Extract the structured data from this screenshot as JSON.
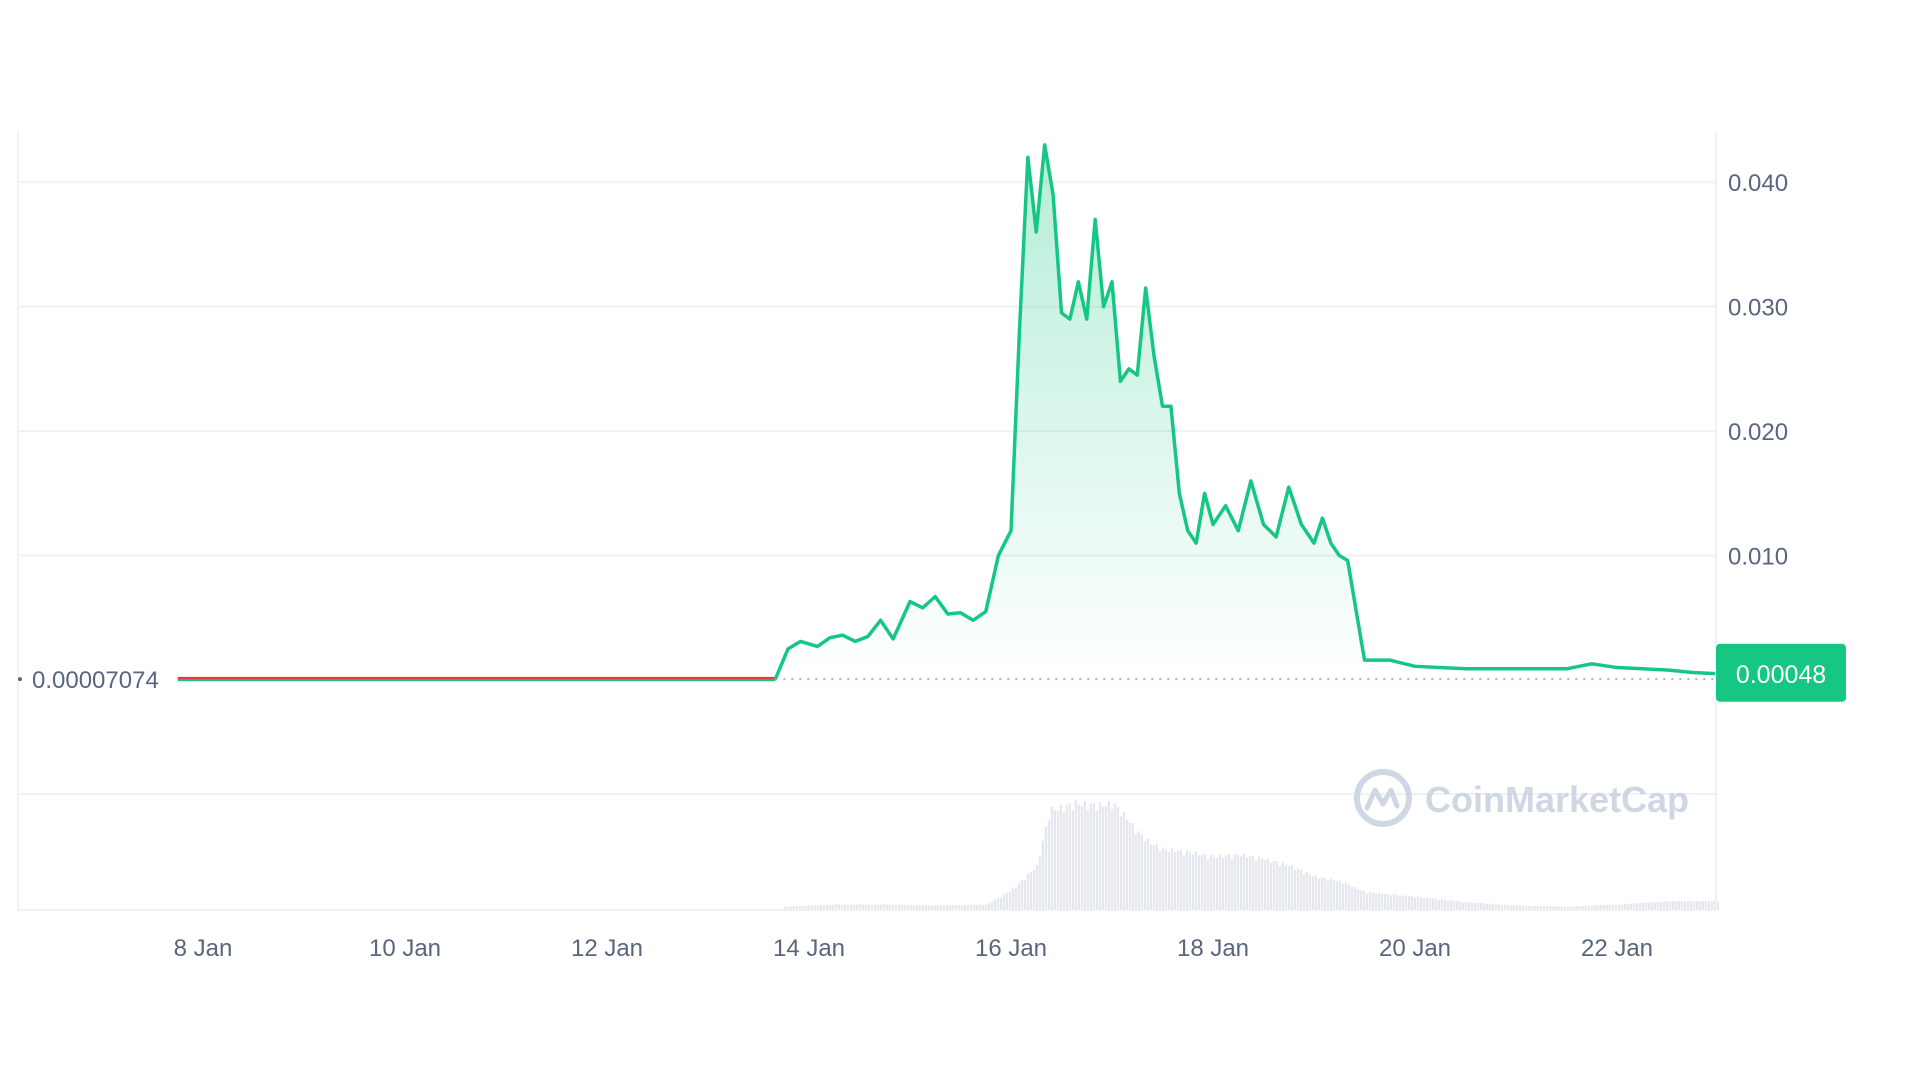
{
  "chart_data": {
    "type": "area",
    "x_ticks": [
      "8 Jan",
      "10 Jan",
      "12 Jan",
      "14 Jan",
      "16 Jan",
      "18 Jan",
      "20 Jan",
      "22 Jan"
    ],
    "y_ticks": [
      "0.040",
      "0.030",
      "0.020",
      "0.010"
    ],
    "ylim": [
      0,
      0.045
    ],
    "open_price_label": "0.00007074",
    "current_price_label": "0.00048",
    "watermark": "CoinMarketCap",
    "grid": true,
    "colors": {
      "line_up": "#16c784",
      "line_flat": "#ea3943",
      "fill": "#16c784",
      "grid": "#eff2f5",
      "tick_text": "#58667e",
      "price_tag": "#16c784",
      "volume": "#e4e8ee"
    },
    "price_series": {
      "x": [
        "2024-01-07T18:00",
        "2024-01-13T16:00",
        "2024-01-13T19:00",
        "2024-01-13T22:00",
        "2024-01-14T02:00",
        "2024-01-14T05:00",
        "2024-01-14T08:00",
        "2024-01-14T11:00",
        "2024-01-14T14:00",
        "2024-01-14T17:00",
        "2024-01-14T20:00",
        "2024-01-15T00:00",
        "2024-01-15T03:00",
        "2024-01-15T06:00",
        "2024-01-15T09:00",
        "2024-01-15T12:00",
        "2024-01-15T15:00",
        "2024-01-15T18:00",
        "2024-01-15T21:00",
        "2024-01-16T00:00",
        "2024-01-16T02:00",
        "2024-01-16T04:00",
        "2024-01-16T06:00",
        "2024-01-16T08:00",
        "2024-01-16T10:00",
        "2024-01-16T12:00",
        "2024-01-16T14:00",
        "2024-01-16T16:00",
        "2024-01-16T18:00",
        "2024-01-16T20:00",
        "2024-01-16T22:00",
        "2024-01-17T00:00",
        "2024-01-17T02:00",
        "2024-01-17T04:00",
        "2024-01-17T06:00",
        "2024-01-17T08:00",
        "2024-01-17T10:00",
        "2024-01-17T12:00",
        "2024-01-17T14:00",
        "2024-01-17T16:00",
        "2024-01-17T18:00",
        "2024-01-17T20:00",
        "2024-01-17T22:00",
        "2024-01-18T00:00",
        "2024-01-18T03:00",
        "2024-01-18T06:00",
        "2024-01-18T09:00",
        "2024-01-18T12:00",
        "2024-01-18T15:00",
        "2024-01-18T18:00",
        "2024-01-18T21:00",
        "2024-01-19T00:00",
        "2024-01-19T02:00",
        "2024-01-19T04:00",
        "2024-01-19T06:00",
        "2024-01-19T08:00",
        "2024-01-19T12:00",
        "2024-01-19T18:00",
        "2024-01-20T00:00",
        "2024-01-20T12:00",
        "2024-01-21T00:00",
        "2024-01-21T12:00",
        "2024-01-21T18:00",
        "2024-01-22T00:00",
        "2024-01-22T12:00",
        "2024-01-22T18:00",
        "2024-01-23T00:00"
      ],
      "y": [
        7e-05,
        7e-05,
        0.0025,
        0.0031,
        0.0027,
        0.0034,
        0.0036,
        0.0031,
        0.0035,
        0.0048,
        0.0033,
        0.0063,
        0.0058,
        0.0067,
        0.0053,
        0.0054,
        0.0048,
        0.0055,
        0.01,
        0.012,
        0.028,
        0.042,
        0.036,
        0.043,
        0.039,
        0.0295,
        0.029,
        0.032,
        0.029,
        0.037,
        0.03,
        0.032,
        0.024,
        0.025,
        0.0245,
        0.0315,
        0.026,
        0.022,
        0.022,
        0.015,
        0.012,
        0.011,
        0.015,
        0.0125,
        0.014,
        0.012,
        0.016,
        0.0125,
        0.0115,
        0.0155,
        0.0125,
        0.011,
        0.013,
        0.011,
        0.01,
        0.0096,
        0.0016,
        0.0016,
        0.0011,
        0.0009,
        0.0009,
        0.0009,
        0.0013,
        0.001,
        0.0008,
        0.0006,
        0.0005
      ]
    },
    "volume_series": {
      "x": [
        "2024-01-13T18:00",
        "2024-01-14T06:00",
        "2024-01-14T18:00",
        "2024-01-15T06:00",
        "2024-01-15T18:00",
        "2024-01-16T00:00",
        "2024-01-16T06:00",
        "2024-01-16T09:00",
        "2024-01-16T12:00",
        "2024-01-16T15:00",
        "2024-01-16T18:00",
        "2024-01-16T21:00",
        "2024-01-17T00:00",
        "2024-01-17T03:00",
        "2024-01-17T06:00",
        "2024-01-17T09:00",
        "2024-01-17T12:00",
        "2024-01-17T18:00",
        "2024-01-18T00:00",
        "2024-01-18T06:00",
        "2024-01-18T12:00",
        "2024-01-18T18:00",
        "2024-01-19T00:00",
        "2024-01-19T06:00",
        "2024-01-19T12:00",
        "2024-01-19T18:00",
        "2024-01-20T00:00",
        "2024-01-20T12:00",
        "2024-01-21T00:00",
        "2024-01-21T12:00",
        "2024-01-22T00:00",
        "2024-01-22T12:00",
        "2024-01-23T00:00"
      ],
      "y": [
        3,
        5,
        5,
        4,
        5,
        18,
        40,
        90,
        92,
        96,
        95,
        94,
        96,
        84,
        70,
        60,
        55,
        52,
        48,
        50,
        46,
        40,
        30,
        26,
        16,
        14,
        12,
        7,
        4,
        3,
        5,
        8,
        8
      ]
    }
  }
}
